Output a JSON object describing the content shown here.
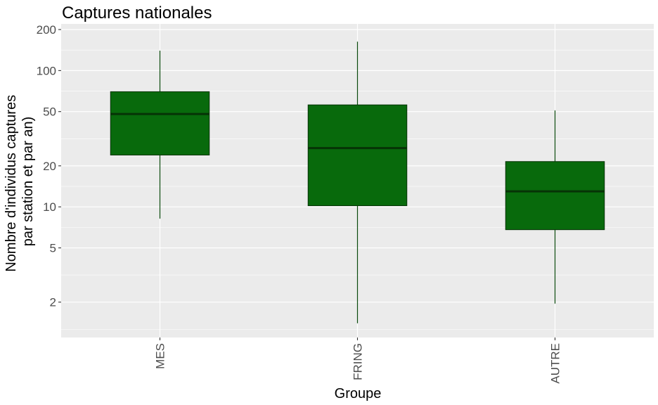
{
  "chart_data": {
    "type": "boxplot",
    "title": "Captures nationales",
    "xlabel": "Groupe",
    "ylabel": [
      "Nombre d'individus captures",
      "par station et par an)"
    ],
    "y_scale": "log10",
    "ylim": [
      1.1,
      220
    ],
    "y_ticks": [
      2,
      5,
      10,
      20,
      50,
      100,
      200
    ],
    "y_tick_labels": [
      "2",
      "5",
      "10",
      "20",
      "50",
      "100",
      "200"
    ],
    "grid": true,
    "categories": [
      "MES",
      "FRING",
      "AUTRE"
    ],
    "boxes": [
      {
        "category": "MES",
        "min": 8.2,
        "q1": 24,
        "median": 48,
        "q3": 70,
        "max": 140
      },
      {
        "category": "FRING",
        "min": 1.4,
        "q1": 10.2,
        "median": 27,
        "q3": 56,
        "max": 163
      },
      {
        "category": "AUTRE",
        "min": 1.95,
        "q1": 6.8,
        "median": 13,
        "q3": 21.5,
        "max": 51
      }
    ],
    "colors": {
      "panel_background": "#ebebeb",
      "grid": "#ffffff",
      "box_fill": "#086a0c",
      "box_stroke": "#063306",
      "median_line": "#063306",
      "whisker": "#0a4a0c"
    }
  }
}
